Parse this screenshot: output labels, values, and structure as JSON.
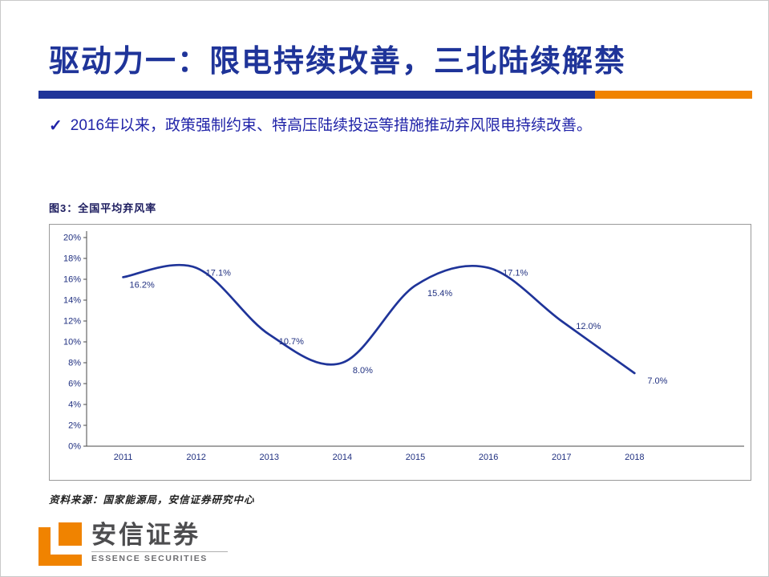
{
  "slide": {
    "title": "驱动力一：限电持续改善，三北陆续解禁",
    "bullet": {
      "marker": "✓",
      "text": "2016年以来，政策强制约束、特高压陆续投运等措施推动弃风限电持续改善。"
    },
    "figure_title": "图3：全国平均弃风率",
    "source": "资料来源：国家能源局，安信证券研究中心"
  },
  "chart_data": {
    "type": "line",
    "title": "图3：全国平均弃风率",
    "categories": [
      "2011",
      "2012",
      "2013",
      "2014",
      "2015",
      "2016",
      "2017",
      "2018"
    ],
    "series": [
      {
        "name": "全国平均弃风率",
        "values": [
          16.2,
          17.1,
          10.7,
          8.0,
          15.4,
          17.1,
          12.0,
          7.0
        ]
      }
    ],
    "data_labels": [
      "16.2%",
      "17.1%",
      "10.7%",
      "8.0%",
      "15.4%",
      "17.1%",
      "12.0%",
      "7.0%"
    ],
    "xlabel": "",
    "ylabel": "",
    "ylim": [
      0,
      20
    ],
    "y_tick_step": 2,
    "y_tick_labels": [
      "0%",
      "2%",
      "4%",
      "6%",
      "8%",
      "10%",
      "12%",
      "14%",
      "16%",
      "18%",
      "20%"
    ],
    "grid": false,
    "legend": "none",
    "smooth": true,
    "line_color": "#1F3499"
  },
  "branding": {
    "company_cn": "安信证券",
    "company_en": "ESSENCE SECURITIES",
    "logo_color": "#F08300"
  },
  "colors": {
    "title": "#1F3499",
    "accent_navy": "#1F3499",
    "accent_orange": "#F08300",
    "bullet_text": "#2023A8",
    "chart_line": "#1F3499"
  }
}
